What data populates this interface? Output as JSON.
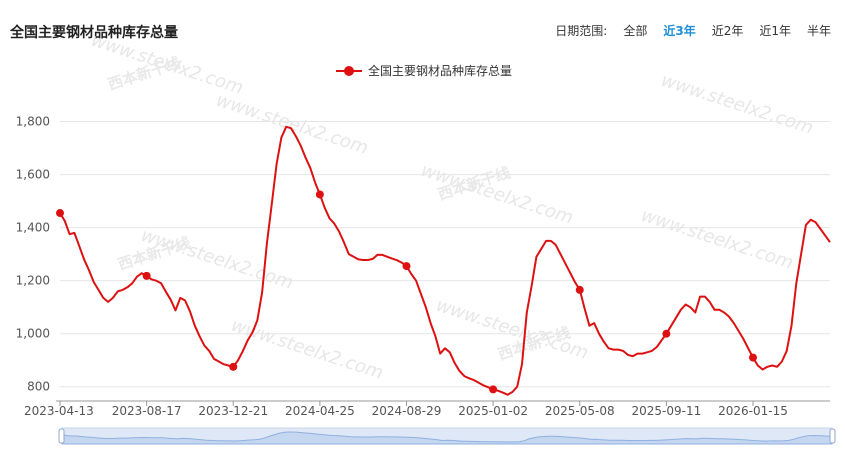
{
  "header": {
    "title": "全国主要钢材品种库存总量",
    "range_label": "日期范围:",
    "range_options": [
      {
        "label": "全部",
        "active": false
      },
      {
        "label": "近3年",
        "active": true
      },
      {
        "label": "近2年",
        "active": false
      },
      {
        "label": "近1年",
        "active": false
      },
      {
        "label": "半年",
        "active": false
      }
    ]
  },
  "watermark": {
    "site": "www.steelx2.com",
    "brand": "西本新干线"
  },
  "colors": {
    "series": "#dd1111",
    "active_option": "#1e8fd8",
    "grid": "#e6e6e6",
    "navigator": "#dfe8f6"
  },
  "chart_data": {
    "type": "line",
    "legend": [
      "全国主要钢材品种库存总量"
    ],
    "legend_position": "top-center",
    "grid": true,
    "ylim": [
      750,
      1900
    ],
    "y_ticks": [
      800,
      1000,
      1200,
      1400,
      1600,
      1800
    ],
    "y_tick_labels": [
      "800",
      "1,000",
      "1,200",
      "1,400",
      "1,600",
      "1,800"
    ],
    "x_ticks": [
      "2023-04-13",
      "2023-08-17",
      "2023-12-21",
      "2024-04-25",
      "2024-08-29",
      "2025-01-02",
      "2025-05-08",
      "2025-09-11",
      "2026-01-15"
    ],
    "series": [
      {
        "name": "全国主要钢材品种库存总量",
        "marked_indices": [
          0,
          18,
          36,
          54,
          72,
          90,
          108,
          126,
          144
        ],
        "values": [
          1455,
          1425,
          1375,
          1380,
          1330,
          1280,
          1240,
          1195,
          1165,
          1135,
          1120,
          1135,
          1160,
          1165,
          1175,
          1190,
          1215,
          1228,
          1218,
          1205,
          1200,
          1190,
          1158,
          1128,
          1088,
          1135,
          1125,
          1085,
          1030,
          990,
          955,
          935,
          905,
          895,
          885,
          880,
          875,
          900,
          935,
          975,
          1005,
          1050,
          1155,
          1340,
          1490,
          1640,
          1740,
          1780,
          1775,
          1745,
          1710,
          1665,
          1625,
          1570,
          1525,
          1475,
          1435,
          1415,
          1385,
          1345,
          1300,
          1290,
          1280,
          1278,
          1278,
          1282,
          1298,
          1297,
          1290,
          1283,
          1277,
          1268,
          1255,
          1225,
          1200,
          1150,
          1100,
          1040,
          990,
          925,
          945,
          930,
          890,
          860,
          840,
          832,
          825,
          815,
          805,
          798,
          790,
          785,
          778,
          770,
          780,
          800,
          885,
          1080,
          1180,
          1290,
          1320,
          1350,
          1350,
          1335,
          1300,
          1265,
          1230,
          1195,
          1165,
          1095,
          1030,
          1040,
          1000,
          970,
          945,
          940,
          940,
          935,
          920,
          915,
          925,
          925,
          930,
          935,
          950,
          975,
          1000,
          1030,
          1060,
          1090,
          1110,
          1100,
          1080,
          1140,
          1140,
          1120,
          1090,
          1090,
          1080,
          1065,
          1040,
          1010,
          980,
          945,
          910,
          880,
          865,
          875,
          880,
          875,
          895,
          935,
          1030,
          1190,
          1300,
          1410,
          1430,
          1420,
          1395,
          1370,
          1345
        ]
      }
    ]
  }
}
